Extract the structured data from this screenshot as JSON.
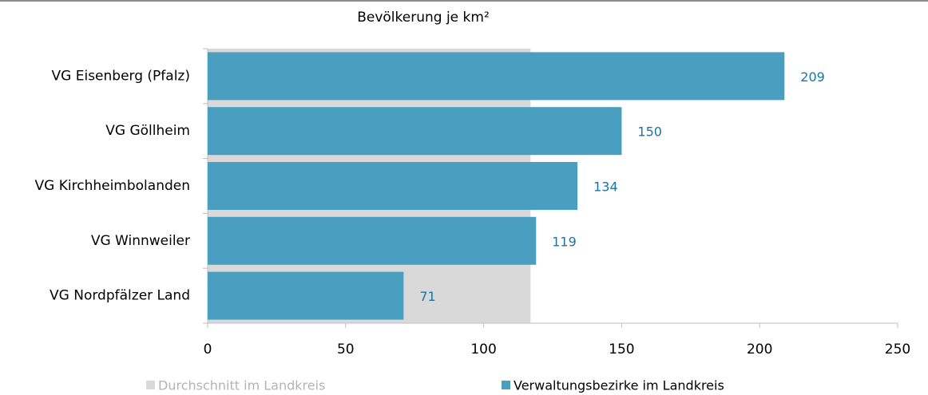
{
  "chart_data": {
    "type": "bar",
    "orientation": "horizontal",
    "title": "Bevölkerung je km²",
    "categories": [
      "VG Eisenberg (Pfalz)",
      "VG Göllheim",
      "VG Kirchheimbolanden",
      "VG Winnweiler",
      "VG Nordpfälzer Land"
    ],
    "series": [
      {
        "name": "Verwaltungsbezirke im Landkreis",
        "color": "#4a9fc1",
        "values": [
          209,
          150,
          134,
          119,
          71
        ]
      }
    ],
    "average": {
      "name": "Durchschnitt im Landkreis",
      "color": "#d9d9d9",
      "value": 117
    },
    "xlim": [
      0,
      250
    ],
    "xticks": [
      0,
      50,
      100,
      150,
      200,
      250
    ]
  }
}
